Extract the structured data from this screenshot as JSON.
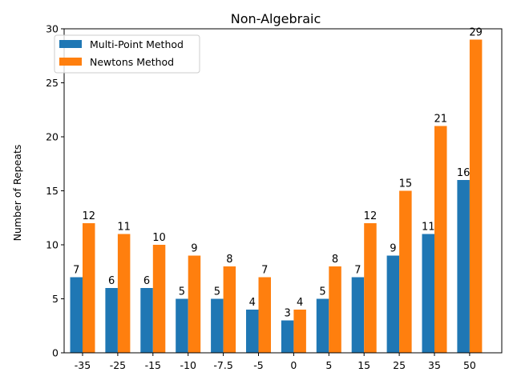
{
  "chart_data": {
    "type": "bar",
    "title": "Non-Algebraic",
    "xlabel": "",
    "ylabel": "Number of Repeats",
    "ylim": [
      0,
      30
    ],
    "yticks": [
      0,
      5,
      10,
      15,
      20,
      25,
      30
    ],
    "categories": [
      "-35",
      "-25",
      "-15",
      "-10",
      "-7.5",
      "-5",
      "0",
      "5",
      "15",
      "25",
      "35",
      "50"
    ],
    "series": [
      {
        "name": "Multi-Point Method",
        "color": "#1f77b4",
        "values": [
          7,
          6,
          6,
          5,
          5,
          4,
          3,
          5,
          7,
          9,
          11,
          16
        ]
      },
      {
        "name": "Newtons Method",
        "color": "#ff7f0e",
        "values": [
          12,
          11,
          10,
          9,
          8,
          7,
          4,
          8,
          12,
          15,
          21,
          29
        ]
      }
    ],
    "legend_position": "top-left",
    "grid": false
  }
}
